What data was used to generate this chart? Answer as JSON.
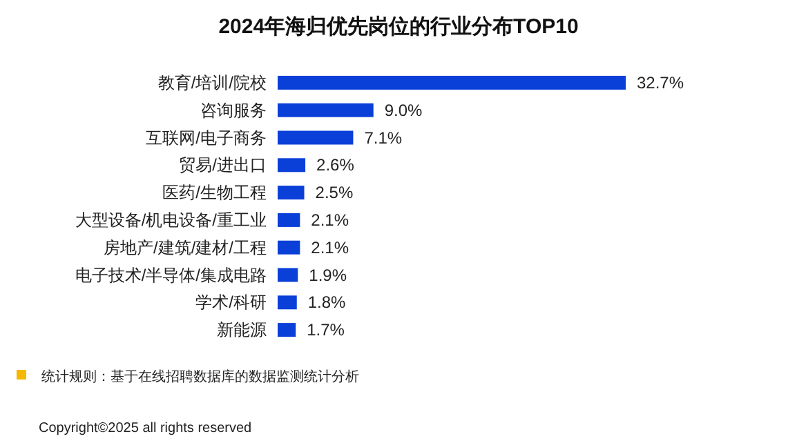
{
  "chart_data": {
    "type": "bar",
    "orientation": "horizontal",
    "title": "2024年海归优先岗位的行业分布TOP10",
    "categories": [
      "教育/培训/院校",
      "咨询服务",
      "互联网/电子商务",
      "贸易/进出口",
      "医药/生物工程",
      "大型设备/机电设备/重工业",
      "房地产/建筑/建材/工程",
      "电子技术/半导体/集成电路",
      "学术/科研",
      "新能源"
    ],
    "values": [
      32.7,
      9.0,
      7.1,
      2.6,
      2.5,
      2.1,
      2.1,
      1.9,
      1.8,
      1.7
    ],
    "value_labels": [
      "32.7%",
      "9.0%",
      "7.1%",
      "2.6%",
      "2.5%",
      "2.1%",
      "2.1%",
      "1.9%",
      "1.8%",
      "1.7%"
    ],
    "color": "#0a3fd8",
    "annotations": [
      "统计规则：基于在线招聘数据库的数据监测统计分析",
      "Copyright©2025 all rights reserved"
    ]
  }
}
